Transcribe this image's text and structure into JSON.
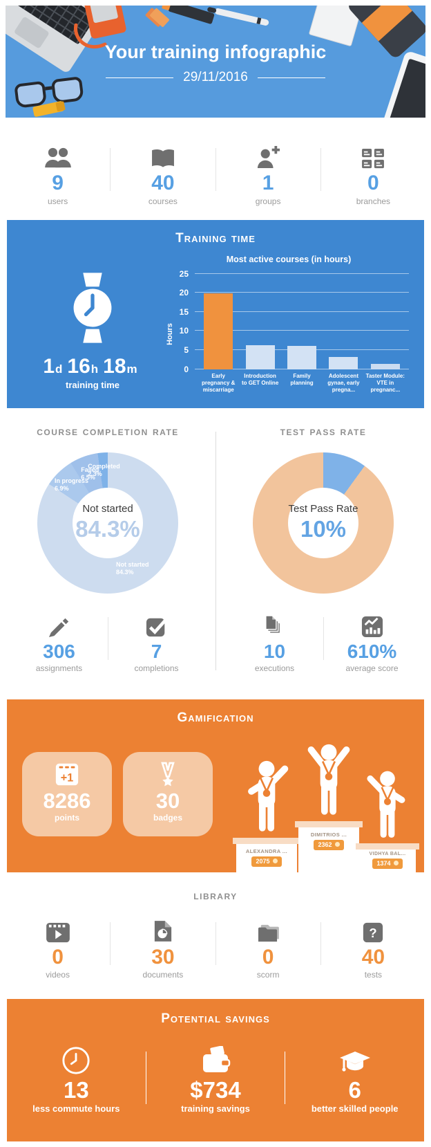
{
  "colors": {
    "header_blue": "#569bdd",
    "section_blue": "#3e87d1",
    "orange": "#ec8133",
    "stat_blue": "#57a0e3",
    "stat_orange": "#f0923e"
  },
  "header": {
    "title": "Your training infographic",
    "date": "29/11/2016"
  },
  "overview_stats": [
    {
      "icon": "users-icon",
      "value": "9",
      "label": "users"
    },
    {
      "icon": "book-icon",
      "value": "40",
      "label": "courses"
    },
    {
      "icon": "user-add-icon",
      "value": "1",
      "label": "groups"
    },
    {
      "icon": "branches-icon",
      "value": "0",
      "label": "branches"
    }
  ],
  "training_time": {
    "title": "Training Time",
    "time": [
      {
        "value": "1",
        "unit": "d"
      },
      {
        "value": "16",
        "unit": "h"
      },
      {
        "value": "18",
        "unit": "m"
      }
    ],
    "caption": "training time"
  },
  "chart_data": [
    {
      "id": "most-active-courses",
      "type": "bar",
      "title": "Most active courses (in hours)",
      "ylabel": "Hours",
      "ylim": [
        0,
        25
      ],
      "yticks": [
        0,
        5,
        10,
        15,
        20,
        25
      ],
      "grid": true,
      "categories": [
        "Early pregnancy & miscarriage",
        "Introduction to GET Online",
        "Family planning",
        "Adolescent gynae, early pregna...",
        "Taster Module: VTE in pregnanc..."
      ],
      "values": [
        19.9,
        6.2,
        6.1,
        3.2,
        1.3
      ],
      "bar_colors": [
        "#f0923e",
        "#d3e2f4",
        "#d3e2f4",
        "#d3e2f4",
        "#cbdcf1"
      ]
    },
    {
      "id": "course-completion-rate",
      "type": "donut",
      "title": "Course Completion Rate",
      "center_label": "Not started",
      "center_value": "84.3%",
      "show_slice_labels": true,
      "slices": [
        {
          "label": "Not started",
          "value": 84.3,
          "color": "#cddcef"
        },
        {
          "label": "In progress",
          "value": 6.9,
          "color": "#abc9ed"
        },
        {
          "label": "Failed",
          "value": 6.5,
          "color": "#9fc0ea"
        },
        {
          "label": "Completed",
          "value": 2.3,
          "color": "#7fb2e8"
        }
      ]
    },
    {
      "id": "test-pass-rate",
      "type": "donut",
      "title": "Test Pass Rate",
      "center_label": "Test Pass Rate",
      "center_value": "10%",
      "show_slice_labels": false,
      "slices": [
        {
          "label": "pass",
          "value": 10,
          "color": "#7fb2e8"
        },
        {
          "label": "fail",
          "value": 90,
          "color": "#f2c49c"
        }
      ]
    }
  ],
  "completion_stats": [
    {
      "icon": "pencil-icon",
      "value": "306",
      "label": "assignments"
    },
    {
      "icon": "check-icon",
      "value": "7",
      "label": "completions"
    }
  ],
  "test_stats": [
    {
      "icon": "pages-icon",
      "value": "10",
      "label": "executions"
    },
    {
      "icon": "chart-icon",
      "value": "610%",
      "label": "average score"
    }
  ],
  "gamification": {
    "title": "Gamification",
    "cards": [
      {
        "icon": "points-icon",
        "value": "8286",
        "label": "points"
      },
      {
        "icon": "medal-icon",
        "value": "30",
        "label": "badges"
      }
    ],
    "leaderboard": [
      {
        "rank": 2,
        "name": "ALEXANDRA ...",
        "points": "2075"
      },
      {
        "rank": 1,
        "name": "DIMITRIOS ...",
        "points": "2362"
      },
      {
        "rank": 3,
        "name": "VIDHYA BAL...",
        "points": "1374"
      }
    ]
  },
  "library": {
    "title": "Library",
    "stats": [
      {
        "icon": "video-icon",
        "value": "0",
        "label": "videos"
      },
      {
        "icon": "document-icon",
        "value": "30",
        "label": "documents"
      },
      {
        "icon": "folder-icon",
        "value": "0",
        "label": "scorm"
      },
      {
        "icon": "question-icon",
        "value": "40",
        "label": "tests"
      }
    ]
  },
  "potential_savings": {
    "title": "Potential Savings",
    "stats": [
      {
        "icon": "clock-icon",
        "value": "13",
        "label": "less commute hours"
      },
      {
        "icon": "wallet-icon",
        "value": "$734",
        "label": "training savings"
      },
      {
        "icon": "graduation-cap-icon",
        "value": "6",
        "label": "better skilled people"
      }
    ]
  }
}
